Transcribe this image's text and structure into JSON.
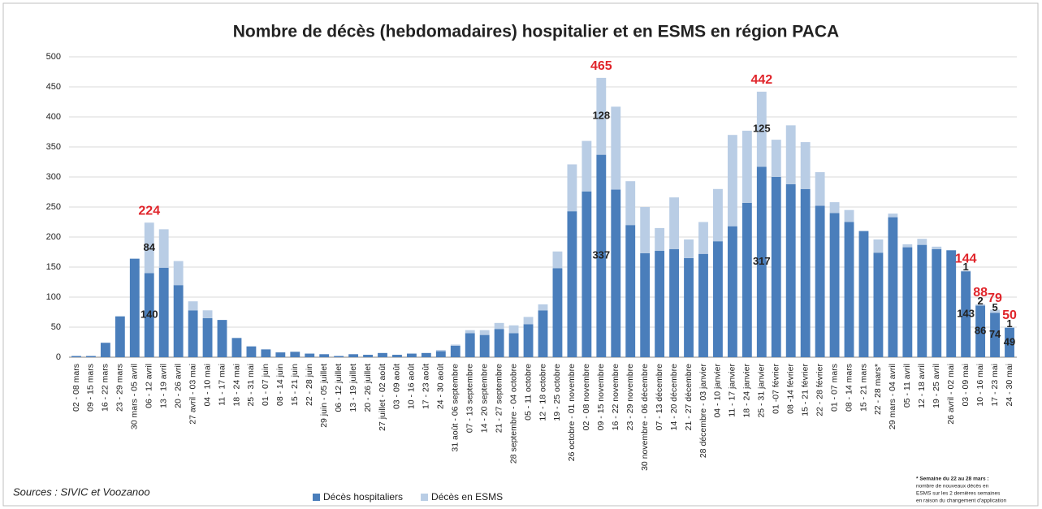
{
  "chart_data": {
    "type": "stacked-bar",
    "title": "Nombre de décès (hebdomadaires) hospitalier et en ESMS en région PACA",
    "categories": [
      "02 - 08 mars",
      "09 - 15 mars",
      "16 - 22 mars",
      "23 - 29 mars",
      "30 mars - 05 avril",
      "06 - 12 avril",
      "13 - 19 avril",
      "20 - 26 avril",
      "27 avril - 03 mai",
      "04 - 10 mai",
      "11 - 17 mai",
      "18 - 24 mai",
      "25 - 31 mai",
      "01 - 07 juin",
      "08 - 14 juin",
      "15 - 21 juin",
      "22 - 28 juin",
      "29 juin - 05 juillet",
      "06 - 12 juillet",
      "13 - 19 juillet",
      "20 - 26 juillet",
      "27 juillet - 02 août",
      "03 - 09 août",
      "10 - 16 août",
      "17 - 23 août",
      "24 - 30 août",
      "31 août - 06 septembre",
      "07 - 13 septembre",
      "14 - 20 septembre",
      "21 - 27 septembre",
      "28 septembre - 04 octobre",
      "05 - 11 octobre",
      "12 - 18 octobre",
      "19 - 25 octobre",
      "26 octobre - 01 novembre",
      "02 - 08 novembre",
      "09 - 15 novembre",
      "16 - 22 novembre",
      "23 - 29 novembre",
      "30 novembre - 06 décembre",
      "07 - 13 décembre",
      "14 - 20 décembre",
      "21 - 27 décembre",
      "28 décembre - 03 janvier",
      "04 - 10 janvier",
      "11 - 17 janvier",
      "18 - 24 janvier",
      "25 - 31 janvier",
      "01 -07 février",
      "08 -14 février",
      "15 - 21 février",
      "22 - 28 février",
      "01 - 07 mars",
      "08 - 14 mars",
      "15 - 21 mars",
      "22 - 28 mars*",
      "29 mars - 04 avril",
      "05 - 11 avril",
      "12 - 18 avril",
      "19 - 25 avril",
      "26 avril - 02 mai",
      "03 - 09 mai",
      "10 - 16 mai",
      "17 - 23 mai",
      "24 - 30 mai"
    ],
    "series": [
      {
        "name": "Décès hospitaliers",
        "color": "#4a7ebb",
        "values": [
          2,
          2,
          24,
          68,
          164,
          140,
          149,
          120,
          78,
          65,
          62,
          32,
          18,
          13,
          8,
          9,
          6,
          5,
          2,
          5,
          4,
          7,
          4,
          6,
          7,
          10,
          19,
          40,
          37,
          47,
          40,
          55,
          78,
          148,
          243,
          276,
          337,
          279,
          220,
          173,
          177,
          180,
          165,
          172,
          193,
          218,
          257,
          317,
          300,
          288,
          280,
          252,
          240,
          225,
          210,
          174,
          233,
          183,
          187,
          180,
          178,
          143,
          86,
          74,
          49
        ],
        "value_labels": [
          null,
          null,
          null,
          null,
          null,
          "140",
          null,
          null,
          null,
          null,
          null,
          null,
          null,
          null,
          null,
          null,
          null,
          null,
          null,
          null,
          null,
          null,
          null,
          null,
          null,
          null,
          null,
          null,
          null,
          null,
          null,
          null,
          null,
          null,
          null,
          null,
          "337",
          null,
          null,
          null,
          null,
          null,
          null,
          null,
          null,
          null,
          null,
          "317",
          null,
          null,
          null,
          null,
          null,
          null,
          null,
          null,
          null,
          null,
          null,
          null,
          null,
          "143",
          "86",
          "74",
          "49"
        ]
      },
      {
        "name": "Décès en ESMS",
        "color": "#b9cde5",
        "values": [
          0,
          0,
          0,
          0,
          0,
          84,
          64,
          40,
          15,
          13,
          0,
          0,
          0,
          0,
          0,
          0,
          0,
          0,
          0,
          0,
          0,
          0,
          0,
          0,
          0,
          2,
          2,
          5,
          8,
          10,
          13,
          12,
          10,
          28,
          78,
          84,
          128,
          138,
          73,
          77,
          38,
          86,
          31,
          53,
          87,
          152,
          120,
          125,
          62,
          98,
          78,
          56,
          18,
          20,
          0,
          22,
          6,
          5,
          10,
          4,
          0,
          1,
          2,
          5,
          1
        ],
        "value_labels": [
          null,
          null,
          null,
          null,
          null,
          "84",
          null,
          null,
          null,
          null,
          null,
          null,
          null,
          null,
          null,
          null,
          null,
          null,
          null,
          null,
          null,
          null,
          null,
          null,
          null,
          null,
          null,
          null,
          null,
          null,
          null,
          null,
          null,
          null,
          null,
          null,
          "128",
          null,
          null,
          null,
          null,
          null,
          null,
          null,
          null,
          null,
          null,
          "125",
          null,
          null,
          null,
          null,
          null,
          null,
          null,
          null,
          null,
          null,
          null,
          null,
          null,
          "1",
          "2",
          "5",
          "1"
        ]
      }
    ],
    "annotations": [
      {
        "x": "06 - 12 avril",
        "value": 224
      },
      {
        "x": "09 - 15 novembre",
        "value": 465
      },
      {
        "x": "25 - 31 janvier",
        "value": 442
      },
      {
        "x": "03 - 09 mai",
        "value": 144
      },
      {
        "x": "10 - 16 mai",
        "value": 88
      },
      {
        "x": "17 - 23 mai",
        "value": 79
      },
      {
        "x": "24 - 30 mai",
        "value": 50
      }
    ],
    "ylim": [
      0,
      500
    ],
    "yticks": [
      0,
      50,
      100,
      150,
      200,
      250,
      300,
      350,
      400,
      450,
      500
    ],
    "grid": true,
    "source": "Sources : SIVIC et Voozanoo",
    "footnote": [
      "* Semaine du 22 au 28 mars :",
      "nombre de nouveaux décès en",
      "ESMS sur les 2 dernières semaines",
      "en raison du changement d'application"
    ]
  }
}
